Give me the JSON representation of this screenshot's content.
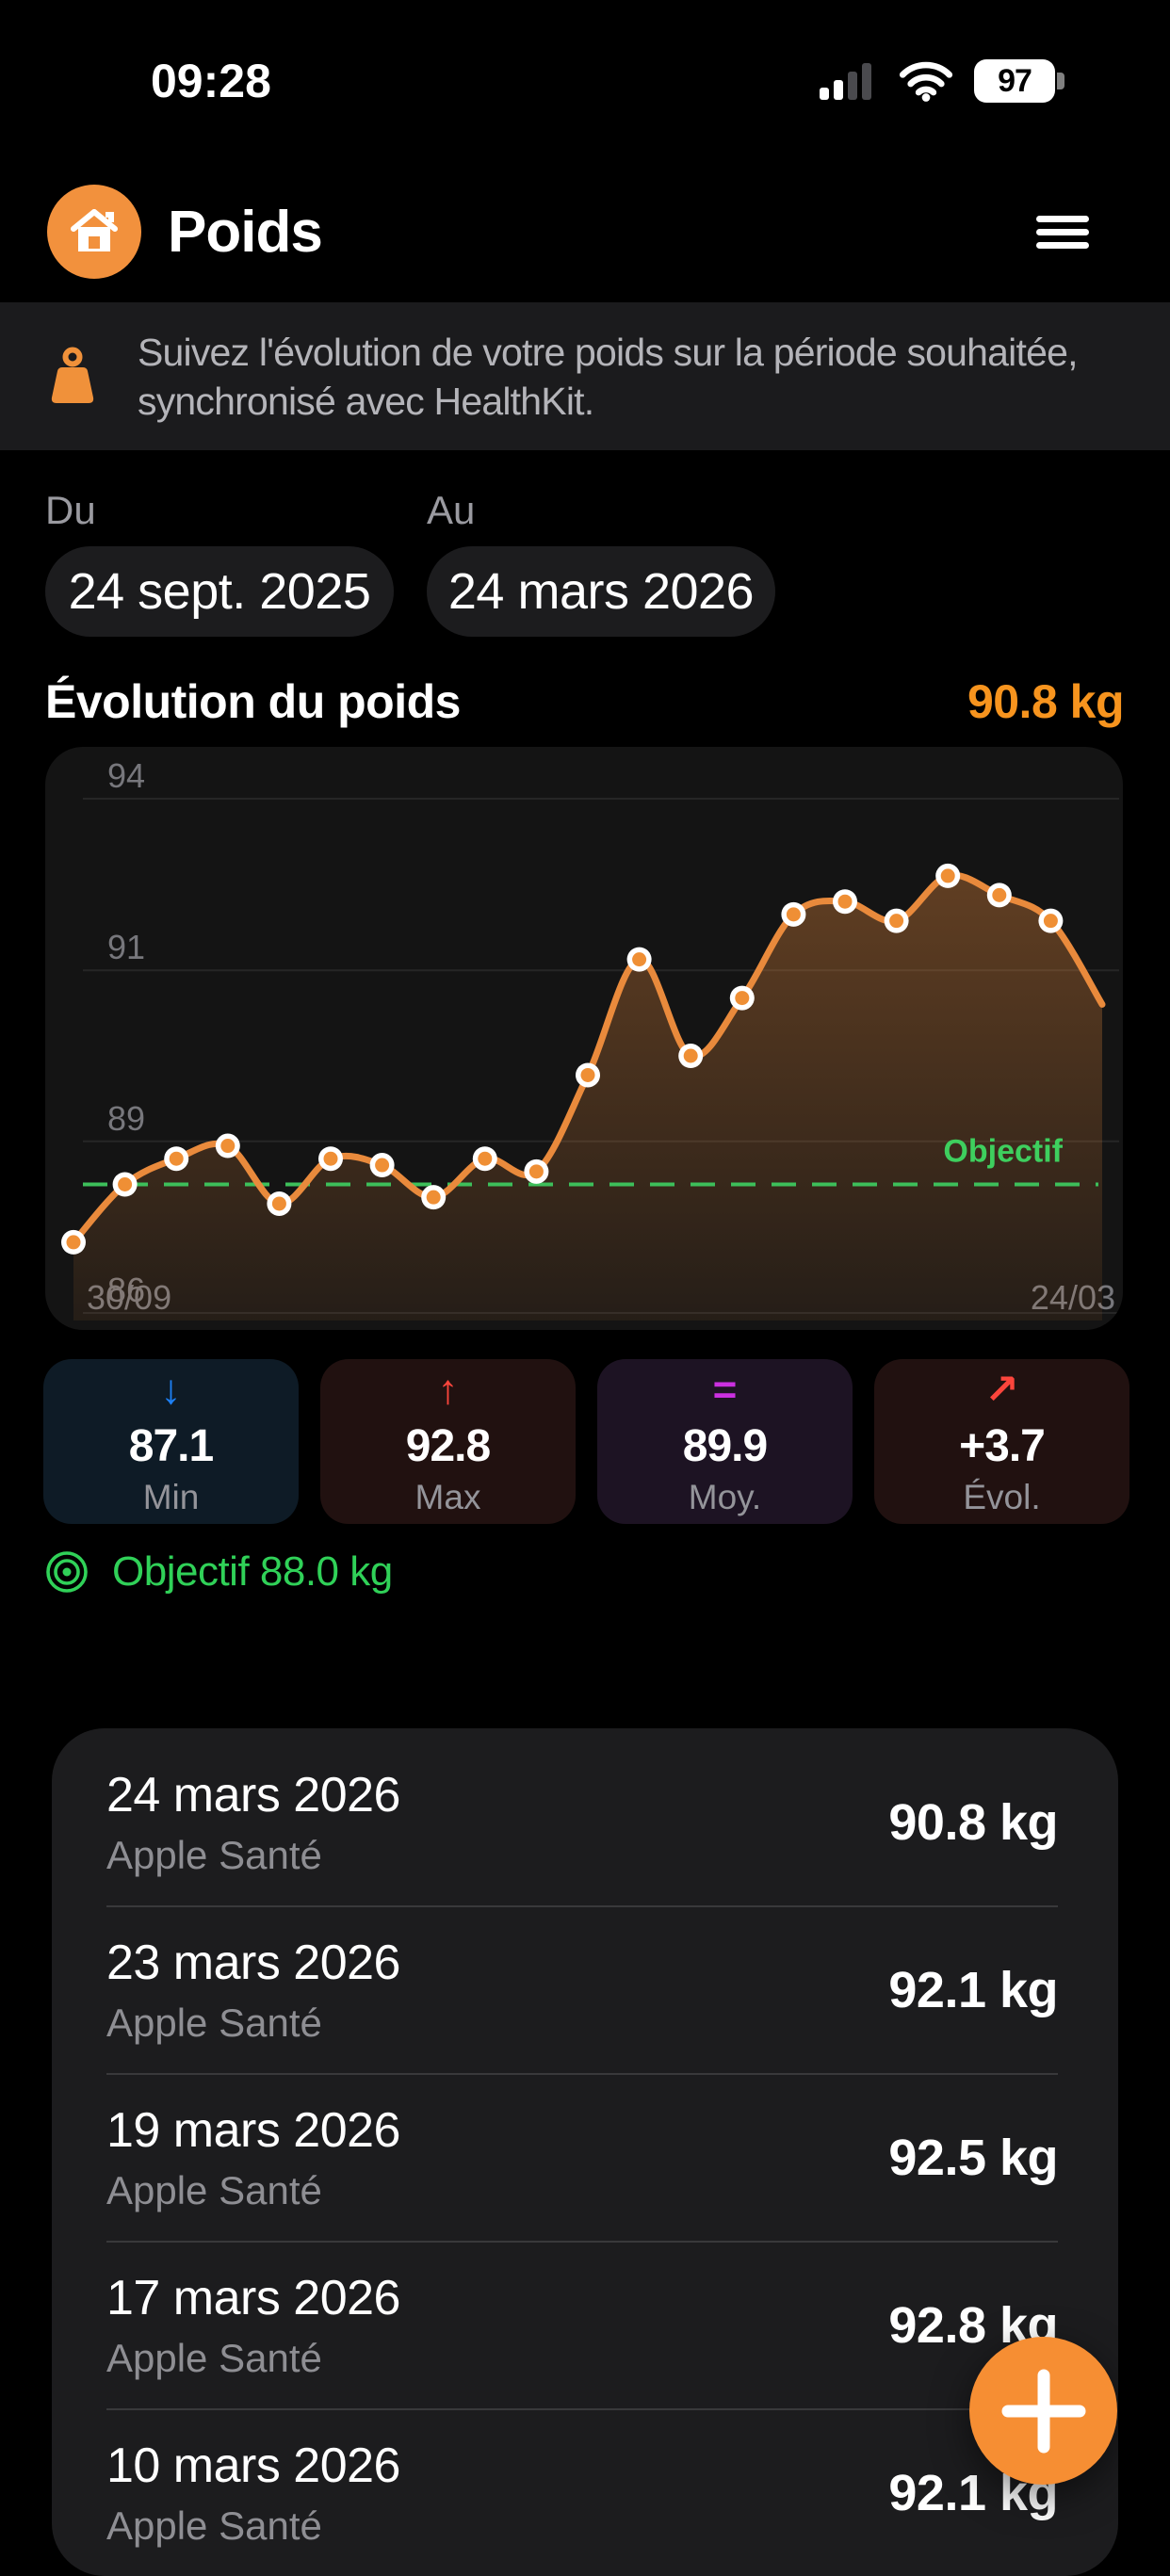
{
  "status_bar": {
    "time": "09:28",
    "battery_percent": "97"
  },
  "header": {
    "title": "Poids"
  },
  "banner": {
    "lines": [
      "Suivez l'évolution de votre poids sur la période souhaitée,",
      "synchronisé avec HealthKit."
    ],
    "icon_color": "#f0913a"
  },
  "date_range": {
    "from_label": "Du",
    "from_value": "24 sept. 2025",
    "to_label": "Au",
    "to_value": "24 mars 2026"
  },
  "section": {
    "title": "Évolution du poids",
    "current_value": "90.8 kg",
    "accent_color": "#f7941e"
  },
  "chart_data": {
    "type": "area",
    "title": "Évolution du poids",
    "values": [
      87.1,
      88.0,
      88.4,
      88.6,
      87.7,
      88.4,
      88.3,
      87.8,
      88.4,
      88.2,
      89.7,
      91.5,
      90.0,
      90.9,
      92.2,
      92.4,
      92.1,
      92.8,
      92.5,
      92.1,
      90.8
    ],
    "ylim": [
      86,
      94
    ],
    "yticks": [
      {
        "label": "94",
        "value": 94
      },
      {
        "label": "91",
        "value": 91.33
      },
      {
        "label": "89",
        "value": 88.67
      },
      {
        "label": "86",
        "value": 86
      }
    ],
    "xticks": [
      {
        "label": "30/09",
        "align": "left"
      },
      {
        "label": "24/03",
        "align": "right"
      }
    ],
    "goal_line": {
      "value": 88.0,
      "label": "Objectif",
      "color": "#3dbf5a"
    },
    "line_color": "#e98a3c",
    "dot_fill": "#ef8f35",
    "dot_ring": "#ffffff",
    "grid": "horizontal",
    "legend": "none",
    "tick_color": "#77777c"
  },
  "stats": [
    {
      "icon": "arrow-down-icon",
      "glyph": "↓",
      "icon_color": "#1d7ff3",
      "bg": "#0e1b26",
      "value": "87.1",
      "label": "Min"
    },
    {
      "icon": "arrow-up-icon",
      "glyph": "↑",
      "icon_color": "#fb453c",
      "bg": "#211110",
      "value": "92.8",
      "label": "Max"
    },
    {
      "icon": "equals-icon",
      "glyph": "=",
      "icon_color": "#cb30e0",
      "bg": "#1d1323",
      "value": "89.9",
      "label": "Moy."
    },
    {
      "icon": "arrow-up-right-icon",
      "glyph": "↗",
      "icon_color": "#fb453c",
      "bg": "#211110",
      "value": "+3.7",
      "label": "Évol."
    }
  ],
  "goal": {
    "text": "Objectif 88.0 kg",
    "color": "#30d158"
  },
  "entries": [
    {
      "date": "24 mars 2026",
      "source": "Apple Santé",
      "value": "90.8 kg"
    },
    {
      "date": "23 mars 2026",
      "source": "Apple Santé",
      "value": "92.1 kg"
    },
    {
      "date": "19 mars 2026",
      "source": "Apple Santé",
      "value": "92.5 kg"
    },
    {
      "date": "17 mars 2026",
      "source": "Apple Santé",
      "value": "92.8 kg"
    },
    {
      "date": "10 mars 2026",
      "source": "Apple Santé",
      "value": "92.1 kg"
    }
  ],
  "colors": {
    "accent_orange": "#f2913d",
    "fab_orange": "#f68e33"
  }
}
